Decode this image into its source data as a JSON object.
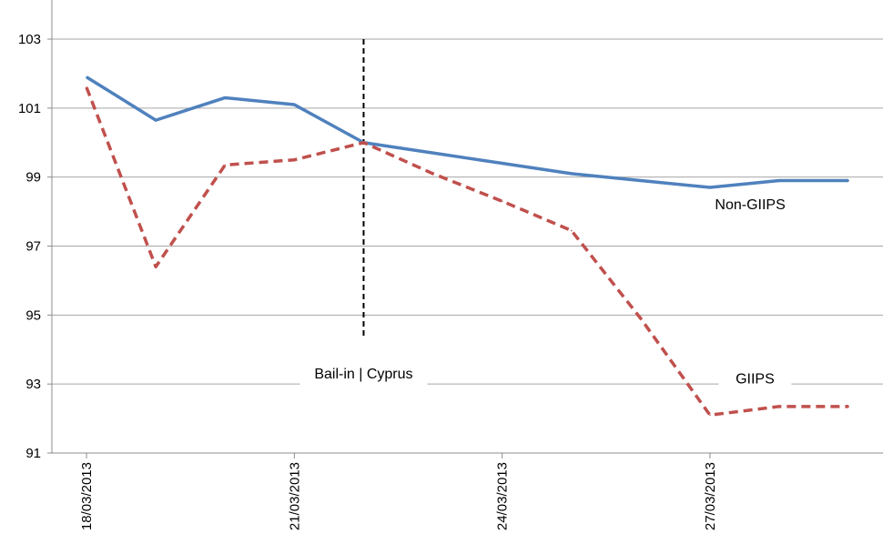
{
  "chart_data": {
    "type": "line",
    "title": "",
    "xlabel": "",
    "ylabel": "",
    "x": [
      "18/03/2013",
      "19/03/2013",
      "20/03/2013",
      "21/03/2013",
      "22/03/2013",
      "23/03/2013",
      "24/03/2013",
      "25/03/2013",
      "26/03/2013",
      "27/03/2013",
      "28/03/2013",
      "29/03/2013"
    ],
    "x_tick_labels": [
      "18/03/2013",
      "21/03/2013",
      "24/03/2013",
      "27/03/2013"
    ],
    "ylim": [
      91,
      103
    ],
    "y_ticks": [
      91,
      93,
      95,
      97,
      99,
      101,
      103
    ],
    "y_tick_labels": [
      "91",
      "93",
      "95",
      "97",
      "99",
      "101",
      "103"
    ],
    "grid": "horizontal",
    "legend": "none",
    "series": [
      {
        "name": "Non-GIIPS",
        "color": "#4f81bd",
        "line_style": "solid",
        "values": [
          101.9,
          100.65,
          101.3,
          101.1,
          100.0,
          99.7,
          99.4,
          99.1,
          98.9,
          98.7,
          98.9,
          98.9
        ]
      },
      {
        "name": "GIIPS",
        "color": "#c0504d",
        "line_style": "dashed",
        "values": [
          101.6,
          96.4,
          99.35,
          99.5,
          100.0,
          99.1,
          98.3,
          97.45,
          94.9,
          92.1,
          92.35,
          92.35
        ]
      }
    ],
    "annotations": [
      {
        "text": "Bail-in | Cyprus",
        "type": "vertical-dashed-line",
        "x": 4.0,
        "line_top": 103.0,
        "line_bottom": 94.3,
        "label_y": 93.3,
        "color": "#000000"
      },
      {
        "text": "Non-GIIPS",
        "x": 9.58,
        "y": 98.2
      },
      {
        "text": "GIIPS",
        "x": 9.65,
        "y": 93.15
      }
    ]
  }
}
